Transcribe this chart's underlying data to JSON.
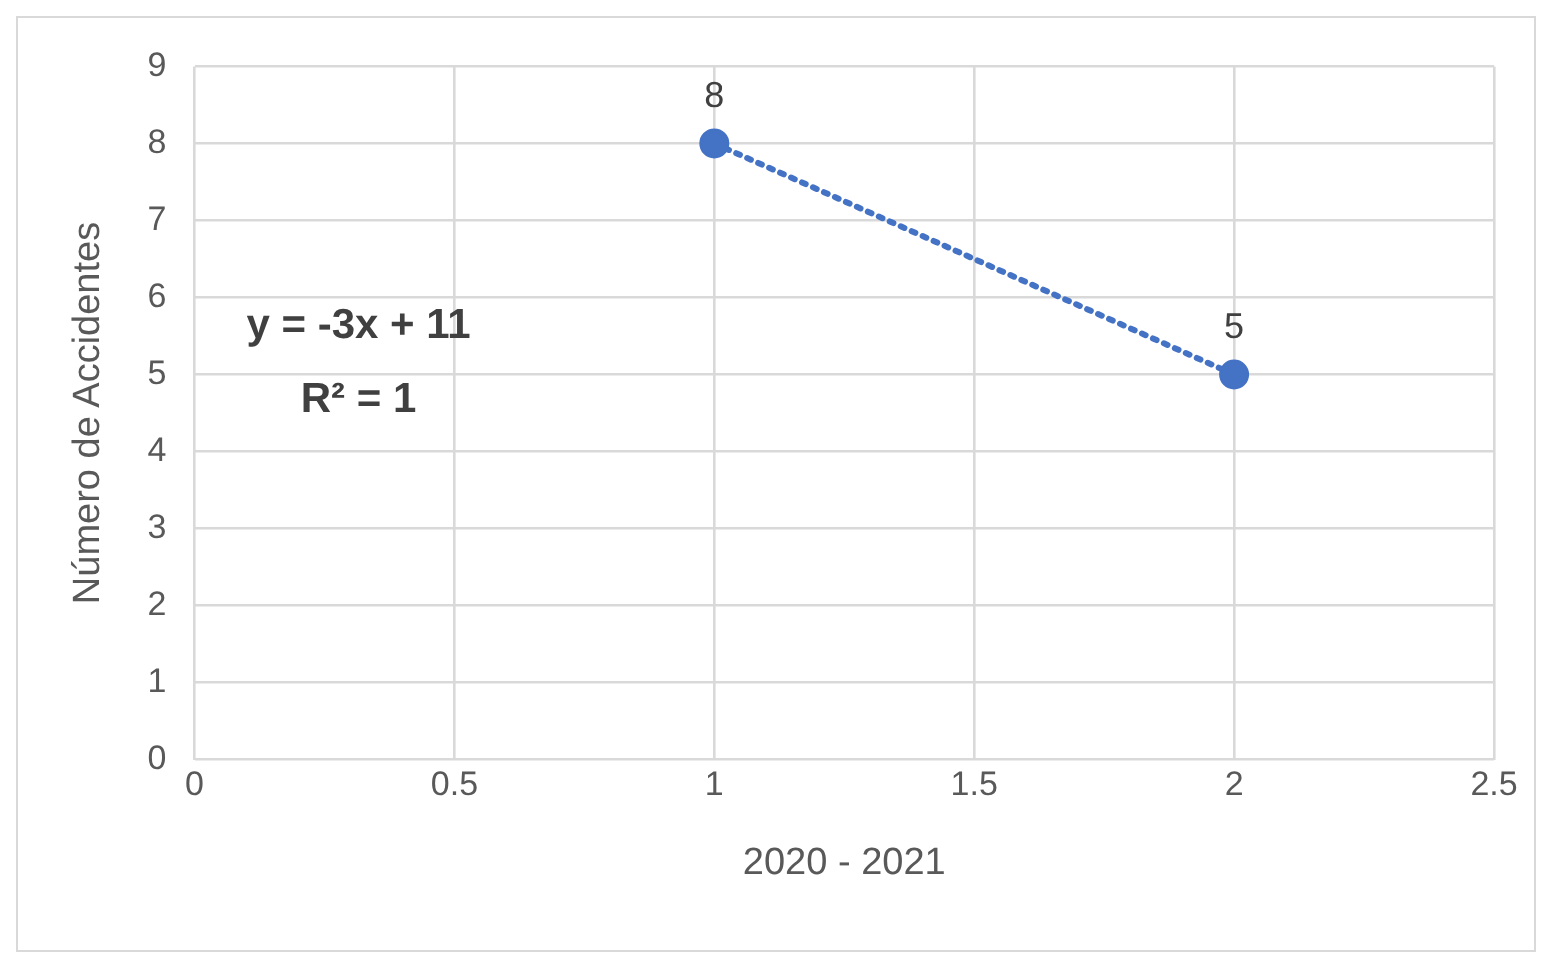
{
  "chart_data": {
    "type": "scatter",
    "xlabel": "2020 - 2021",
    "ylabel": "Número de Accidentes",
    "xlim": [
      0,
      2.5
    ],
    "xticks": [
      0,
      0.5,
      1,
      1.5,
      2,
      2.5
    ],
    "ylim": [
      0,
      9
    ],
    "yticks": [
      0,
      1,
      2,
      3,
      4,
      5,
      6,
      7,
      8,
      9
    ],
    "grid": true,
    "legend": false,
    "marker": "circle",
    "x": [
      1,
      2
    ],
    "series": [
      {
        "color": "#4472c4",
        "values": [
          8,
          5
        ],
        "value_labels": [
          "8",
          "5"
        ]
      },
      {
        "type": "line",
        "color": "#4472c4",
        "values": [
          8,
          5
        ],
        "line_style": "dotted",
        "marker": "none"
      }
    ],
    "annotations": [
      "y = -3x + 11",
      "R² = 1"
    ]
  }
}
